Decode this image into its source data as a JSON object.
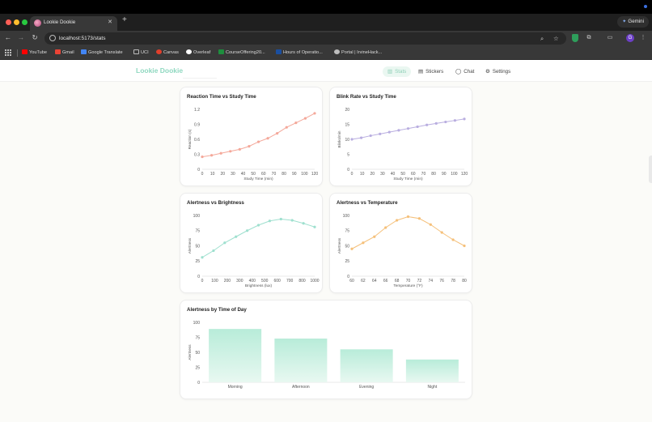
{
  "browser": {
    "tab_title": "Lookie Dookie",
    "url": "localhost:5173/stats",
    "gemini_label": "Gemini",
    "profile_initial": "G",
    "bookmarks": [
      {
        "label": "YouTube",
        "color": "#ff0000"
      },
      {
        "label": "Gmail",
        "color": "#ea4335"
      },
      {
        "label": "Google Translate",
        "color": "#4285f4"
      },
      {
        "label": "UCI",
        "color": "#9aa0a6"
      },
      {
        "label": "Canvas",
        "color": "#e13f2b"
      },
      {
        "label": "Overleaf",
        "color": "#ffffff"
      },
      {
        "label": "CourseOffering20...",
        "color": "#1e8e3e"
      },
      {
        "label": "Hours of Operatio...",
        "color": "#1a4fa0"
      },
      {
        "label": "Portal | IrvineHack...",
        "color": "#bdbdbd"
      }
    ]
  },
  "app": {
    "brand": "Lookie Dookie",
    "accent": "#8fd8c0",
    "nav": [
      {
        "label": "Stats",
        "icon": "bar-chart-icon",
        "active": true
      },
      {
        "label": "Stickers",
        "icon": "document-icon",
        "active": false
      },
      {
        "label": "Chat",
        "icon": "chat-bubble-icon",
        "active": false
      },
      {
        "label": "Settings",
        "icon": "gear-icon",
        "active": false
      }
    ]
  },
  "charts": [
    {
      "id": "reaction",
      "title": "Reaction Time vs Study Time",
      "type": "line",
      "color": "#f4a89a",
      "xlabel": "Study Time (min)",
      "ylabel": "Reaction (s)",
      "xticks": [
        0,
        10,
        20,
        30,
        40,
        50,
        60,
        70,
        80,
        90,
        100,
        120
      ],
      "yticks": [
        "0",
        "0.3",
        "0.6",
        "0.9",
        "1.2"
      ],
      "ylim": [
        0,
        1.2
      ],
      "values": [
        0.25,
        0.28,
        0.32,
        0.36,
        0.4,
        0.46,
        0.55,
        0.62,
        0.72,
        0.84,
        0.93,
        1.02,
        1.12
      ]
    },
    {
      "id": "blink",
      "title": "Blink Rate vs Study Time",
      "type": "line",
      "color": "#b9aee0",
      "xlabel": "Study Time (min)",
      "ylabel": "Blinks/min",
      "xticks": [
        0,
        10,
        20,
        30,
        40,
        50,
        60,
        70,
        80,
        90,
        100,
        120
      ],
      "yticks": [
        "0",
        "5",
        "10",
        "15",
        "20"
      ],
      "ylim": [
        0,
        20
      ],
      "values": [
        10,
        10.5,
        11.2,
        11.8,
        12.4,
        13,
        13.6,
        14.2,
        14.8,
        15.3,
        15.8,
        16.3,
        16.8
      ]
    },
    {
      "id": "brightness",
      "title": "Alertness vs Brightness",
      "type": "line",
      "color": "#9fe0cf",
      "xlabel": "Brightness (lux)",
      "ylabel": "Alertness",
      "xticks": [
        0,
        100,
        200,
        300,
        400,
        500,
        600,
        700,
        800,
        1000
      ],
      "yticks": [
        "0",
        "25",
        "50",
        "75",
        "100"
      ],
      "ylim": [
        0,
        100
      ],
      "values": [
        31,
        42,
        55,
        65,
        75,
        84,
        91,
        94,
        92,
        87,
        81
      ]
    },
    {
      "id": "temperature",
      "title": "Alertness vs Temperature",
      "type": "line",
      "color": "#f5c07a",
      "xlabel": "Temperature (°F)",
      "ylabel": "Alertness",
      "xticks": [
        60,
        62,
        64,
        66,
        68,
        70,
        72,
        74,
        76,
        78,
        80
      ],
      "yticks": [
        "0",
        "25",
        "50",
        "75",
        "100"
      ],
      "ylim": [
        0,
        100
      ],
      "values": [
        45,
        55,
        65,
        80,
        92,
        98,
        95,
        85,
        72,
        60,
        50
      ]
    },
    {
      "id": "timeofday",
      "title": "Alertness by Time of Day",
      "type": "bar",
      "color": "#b8ecd9",
      "xlabel": "",
      "ylabel": "Alertness",
      "categories": [
        "Morning",
        "Afternoon",
        "Evening",
        "Night"
      ],
      "yticks": [
        "0",
        "25",
        "50",
        "75",
        "100"
      ],
      "ylim": [
        0,
        100
      ],
      "values": [
        89,
        73,
        55,
        38
      ]
    }
  ]
}
